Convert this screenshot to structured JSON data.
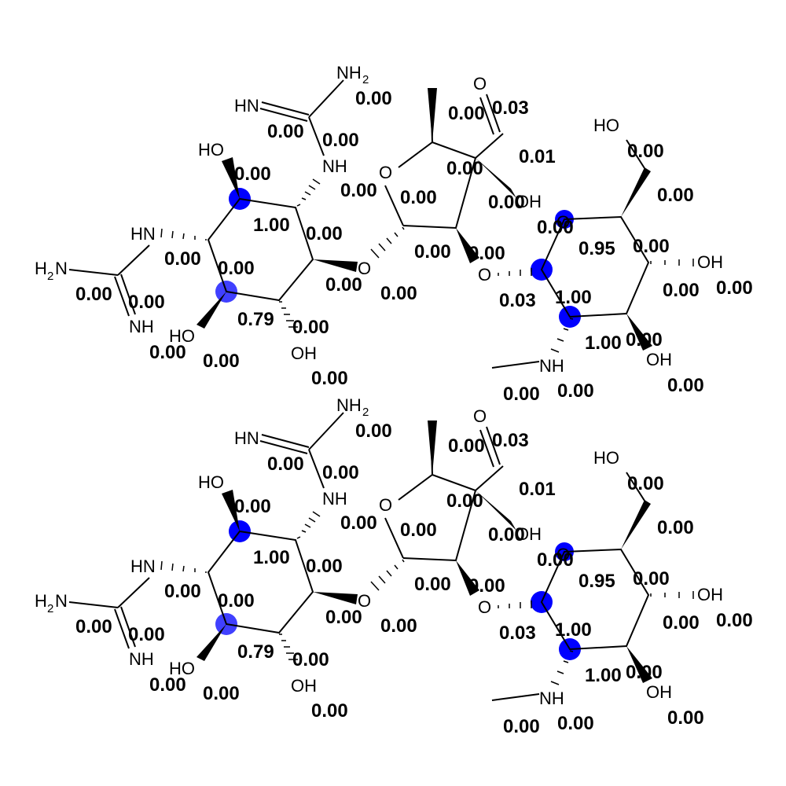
{
  "atoms": {
    "nh2_top": "NH",
    "nh2_top_sub": "2",
    "hn_imine": "HN",
    "nh_a": "NH",
    "ho_a": "HO",
    "hn_b": "HN",
    "h2n_b": "H",
    "h2n_b_sub": "2",
    "h2n_b_n": "N",
    "nh_b": "NH",
    "ho_c": "HO",
    "oh_c": "OH",
    "o_link1": "O",
    "o_ring": "O",
    "o_carbonyl": "O",
    "oh_quat": "OH",
    "o_link2": "O",
    "o_ring2": "O",
    "ho_ch2": "HO",
    "oh_r1": "OH",
    "oh_r2": "OH",
    "nh_me": "NH"
  },
  "scores": [
    "0.00",
    "0.03",
    "0.00",
    "0.00",
    "0.00",
    "0.01",
    "0.00",
    "0.00",
    "0.00",
    "0.00",
    "0.00",
    "1.00",
    "0.00",
    "0.00",
    "0.00",
    "0.00",
    "0.00",
    "0.95",
    "0.00",
    "0.00",
    "0.00",
    "0.03",
    "1.00",
    "0.00",
    "0.00",
    "0.00",
    "0.00",
    "0.00",
    "0.79",
    "0.00",
    "0.00",
    "0.00",
    "0.00",
    "0.00",
    "1.00",
    "0.00",
    "0.00",
    "0.00",
    "0.00",
    "0.00",
    "0.00"
  ],
  "highlight_color": "#0000ff"
}
